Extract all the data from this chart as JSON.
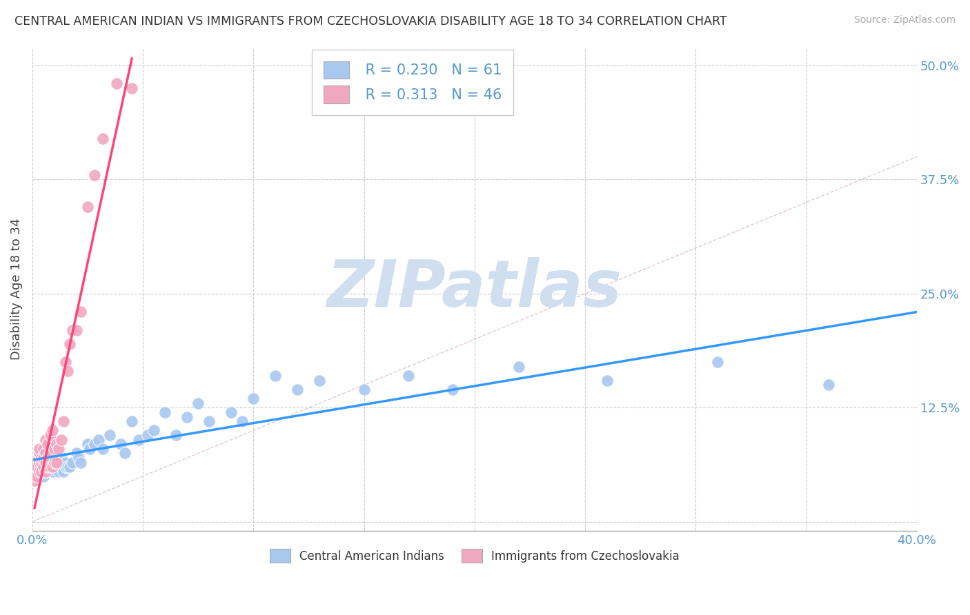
{
  "title": "CENTRAL AMERICAN INDIAN VS IMMIGRANTS FROM CZECHOSLOVAKIA DISABILITY AGE 18 TO 34 CORRELATION CHART",
  "source": "Source: ZipAtlas.com",
  "ylabel": "Disability Age 18 to 34",
  "xlim": [
    0.0,
    0.4
  ],
  "ylim": [
    -0.01,
    0.52
  ],
  "y_ticks": [
    0.0,
    0.125,
    0.25,
    0.375,
    0.5
  ],
  "y_tick_labels": [
    "",
    "12.5%",
    "25.0%",
    "37.5%",
    "50.0%"
  ],
  "x_tick_labels": [
    "0.0%",
    "40.0%"
  ],
  "blue_R": 0.23,
  "blue_N": 61,
  "pink_R": 0.313,
  "pink_N": 46,
  "blue_color": "#a8c8f0",
  "pink_color": "#f0a8c0",
  "trend_blue": "#3399ff",
  "trend_pink": "#ff4477",
  "diag_color": "#ddbbbb",
  "watermark_color": "#d0dff0",
  "blue_x": [
    0.001,
    0.001,
    0.002,
    0.003,
    0.004,
    0.005,
    0.005,
    0.005,
    0.006,
    0.006,
    0.007,
    0.008,
    0.008,
    0.009,
    0.009,
    0.01,
    0.01,
    0.011,
    0.012,
    0.012,
    0.013,
    0.013,
    0.014,
    0.015,
    0.015,
    0.016,
    0.017,
    0.018,
    0.02,
    0.021,
    0.022,
    0.025,
    0.026,
    0.028,
    0.03,
    0.032,
    0.035,
    0.04,
    0.042,
    0.045,
    0.048,
    0.052,
    0.055,
    0.06,
    0.065,
    0.07,
    0.075,
    0.08,
    0.09,
    0.095,
    0.1,
    0.11,
    0.12,
    0.13,
    0.15,
    0.17,
    0.19,
    0.22,
    0.26,
    0.31,
    0.36
  ],
  "blue_y": [
    0.055,
    0.065,
    0.06,
    0.07,
    0.06,
    0.05,
    0.065,
    0.075,
    0.055,
    0.07,
    0.06,
    0.06,
    0.07,
    0.055,
    0.065,
    0.06,
    0.07,
    0.06,
    0.055,
    0.065,
    0.06,
    0.07,
    0.055,
    0.06,
    0.065,
    0.06,
    0.06,
    0.065,
    0.075,
    0.07,
    0.065,
    0.085,
    0.08,
    0.085,
    0.09,
    0.08,
    0.095,
    0.085,
    0.075,
    0.11,
    0.09,
    0.095,
    0.1,
    0.12,
    0.095,
    0.115,
    0.13,
    0.11,
    0.12,
    0.11,
    0.135,
    0.16,
    0.145,
    0.155,
    0.145,
    0.16,
    0.145,
    0.17,
    0.155,
    0.175,
    0.15
  ],
  "pink_x": [
    0.001,
    0.001,
    0.001,
    0.002,
    0.002,
    0.003,
    0.003,
    0.003,
    0.003,
    0.004,
    0.004,
    0.004,
    0.005,
    0.005,
    0.005,
    0.006,
    0.006,
    0.006,
    0.006,
    0.007,
    0.007,
    0.007,
    0.008,
    0.008,
    0.008,
    0.009,
    0.009,
    0.009,
    0.01,
    0.01,
    0.011,
    0.011,
    0.012,
    0.013,
    0.014,
    0.015,
    0.016,
    0.017,
    0.018,
    0.02,
    0.022,
    0.025,
    0.028,
    0.032,
    0.038,
    0.045
  ],
  "pink_y": [
    0.045,
    0.055,
    0.065,
    0.05,
    0.06,
    0.055,
    0.065,
    0.075,
    0.08,
    0.055,
    0.065,
    0.07,
    0.06,
    0.07,
    0.08,
    0.055,
    0.065,
    0.075,
    0.09,
    0.06,
    0.07,
    0.085,
    0.06,
    0.075,
    0.095,
    0.06,
    0.075,
    0.1,
    0.065,
    0.08,
    0.065,
    0.085,
    0.08,
    0.09,
    0.11,
    0.175,
    0.165,
    0.195,
    0.21,
    0.21,
    0.23,
    0.345,
    0.38,
    0.42,
    0.48,
    0.475
  ]
}
